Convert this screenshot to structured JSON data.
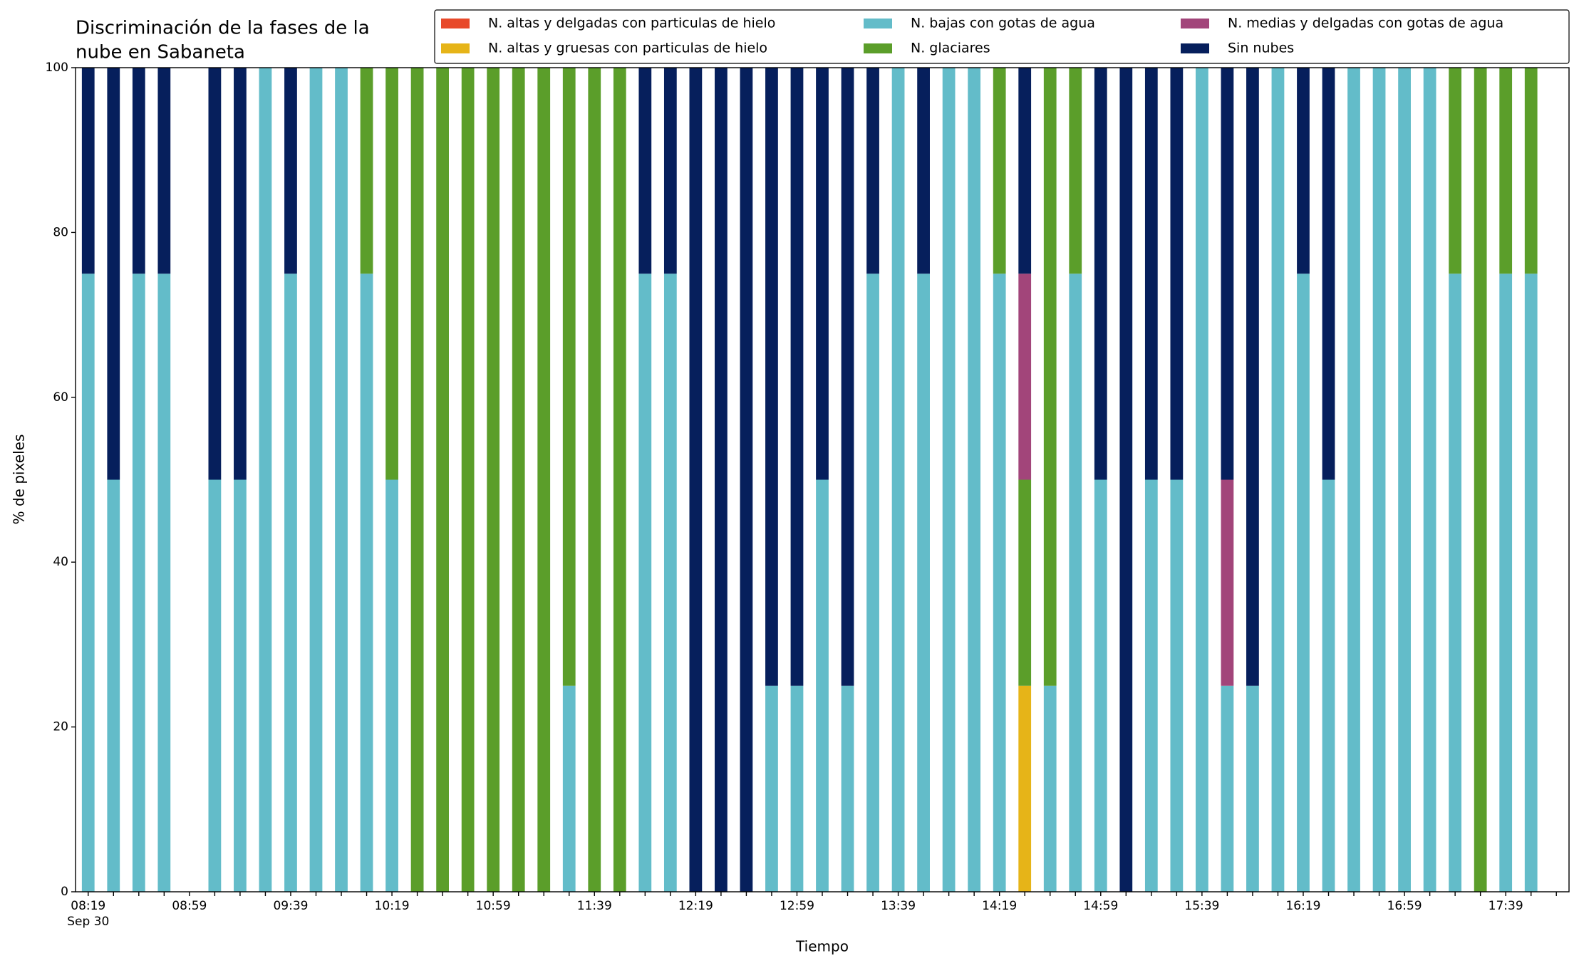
{
  "chart_data": {
    "type": "stacked_bar",
    "title_lines": [
      "Discriminación de la fases de la",
      "nube en Sabaneta"
    ],
    "x_label": "Tiempo",
    "y_label": "% de pixeles",
    "x_date_label": "Sep 30",
    "categories": [
      "08:19",
      null,
      null,
      null,
      "08:59",
      null,
      null,
      null,
      "09:39",
      null,
      null,
      null,
      "10:19",
      null,
      null,
      null,
      "10:59",
      null,
      null,
      null,
      "11:39",
      null,
      null,
      null,
      "12:19",
      null,
      null,
      null,
      "12:59",
      null,
      null,
      null,
      "13:39",
      null,
      null,
      null,
      "14:19",
      null,
      null,
      null,
      "14:59",
      null,
      null,
      null,
      "15:39",
      null,
      null,
      null,
      "16:19",
      null,
      null,
      null,
      "16:59",
      null,
      null,
      null,
      "17:39",
      null,
      null
    ],
    "ylim": [
      0,
      100
    ],
    "yticks": [
      0,
      20,
      40,
      60,
      80,
      100
    ],
    "legend": {
      "loc": "upper right",
      "ncol": 3
    },
    "series": [
      {
        "name": "N. altas y delgadas con particulas de hielo",
        "color": "#e8492a",
        "values": [
          0,
          0,
          0,
          0,
          0,
          0,
          0,
          0,
          0,
          0,
          0,
          0,
          0,
          0,
          0,
          0,
          0,
          0,
          0,
          0,
          0,
          0,
          0,
          0,
          0,
          0,
          0,
          0,
          0,
          0,
          0,
          0,
          0,
          0,
          0,
          0,
          0,
          0,
          0,
          0,
          0,
          0,
          0,
          0,
          0,
          0,
          0,
          0,
          0,
          0,
          0,
          0,
          0,
          0,
          0,
          0,
          0,
          0,
          0
        ]
      },
      {
        "name": "N. altas y gruesas con particulas de hielo",
        "color": "#e6b418",
        "values": [
          0,
          0,
          0,
          0,
          0,
          0,
          0,
          0,
          0,
          0,
          0,
          0,
          0,
          0,
          0,
          0,
          0,
          0,
          0,
          0,
          0,
          0,
          0,
          0,
          0,
          0,
          0,
          0,
          0,
          0,
          0,
          0,
          0,
          0,
          0,
          0,
          0,
          25,
          0,
          0,
          0,
          0,
          0,
          0,
          0,
          0,
          0,
          0,
          0,
          0,
          0,
          0,
          0,
          0,
          0,
          0,
          0,
          0,
          0
        ]
      },
      {
        "name": "N. bajas con gotas de agua",
        "color": "#63bcc9",
        "values": [
          75,
          50,
          75,
          75,
          0,
          50,
          50,
          100,
          75,
          100,
          100,
          75,
          50,
          0,
          0,
          0,
          0,
          0,
          0,
          25,
          0,
          0,
          75,
          75,
          0,
          0,
          0,
          25,
          25,
          50,
          25,
          75,
          100,
          75,
          100,
          100,
          75,
          0,
          25,
          75,
          50,
          0,
          50,
          50,
          100,
          25,
          25,
          100,
          75,
          50,
          100,
          100,
          100,
          100,
          75,
          0,
          75,
          75,
          0
        ]
      },
      {
        "name": "N. glaciares",
        "color": "#5b9e2a",
        "values": [
          0,
          0,
          0,
          0,
          0,
          0,
          0,
          0,
          0,
          0,
          0,
          25,
          50,
          100,
          100,
          100,
          100,
          100,
          100,
          75,
          100,
          100,
          0,
          0,
          0,
          0,
          0,
          0,
          0,
          0,
          0,
          0,
          0,
          0,
          0,
          0,
          25,
          25,
          75,
          25,
          0,
          0,
          0,
          0,
          0,
          0,
          0,
          0,
          0,
          0,
          0,
          0,
          0,
          0,
          25,
          100,
          25,
          25,
          0
        ]
      },
      {
        "name": "N. medias y delgadas con gotas de agua",
        "color": "#a2457a",
        "values": [
          0,
          0,
          0,
          0,
          0,
          0,
          0,
          0,
          0,
          0,
          0,
          0,
          0,
          0,
          0,
          0,
          0,
          0,
          0,
          0,
          0,
          0,
          0,
          0,
          0,
          0,
          0,
          0,
          0,
          0,
          0,
          0,
          0,
          0,
          0,
          0,
          0,
          25,
          0,
          0,
          0,
          0,
          0,
          0,
          0,
          25,
          0,
          0,
          0,
          0,
          0,
          0,
          0,
          0,
          0,
          0,
          0,
          0,
          0
        ]
      },
      {
        "name": "Sin nubes",
        "color": "#061f5c",
        "values": [
          25,
          50,
          25,
          25,
          0,
          50,
          50,
          0,
          25,
          0,
          0,
          0,
          0,
          0,
          0,
          0,
          0,
          0,
          0,
          0,
          0,
          0,
          25,
          25,
          100,
          100,
          100,
          75,
          75,
          50,
          75,
          25,
          0,
          25,
          0,
          0,
          0,
          25,
          0,
          0,
          50,
          100,
          50,
          50,
          0,
          50,
          75,
          0,
          25,
          50,
          0,
          0,
          0,
          0,
          0,
          0,
          0,
          0,
          0
        ]
      }
    ]
  }
}
